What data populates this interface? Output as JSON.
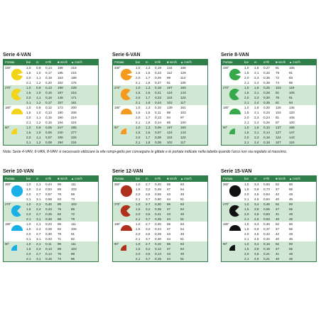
{
  "headers": {
    "portata": "Portata",
    "bar": "bar",
    "m": "m",
    "m3h": "m³/h",
    "sq": "■ mm/h",
    "tr": "▲ mm/h"
  },
  "note": "Nota: Serie 4-VAN, 6-VAN, 8-VAN: è necessario utilizzare la vite rompi-getto per conseguire le gittate e le portate indicate nella tabella quando l'arco non sia regolato al massimo.",
  "panels": [
    {
      "title": "Serie 4-VAN",
      "color": "#f2d41a",
      "groups": [
        {
          "deg": "330°",
          "arc": 330,
          "rows": [
            [
              "1,0",
              "0,9",
              "0,14",
              "189",
              "218"
            ],
            [
              "1,5",
              "1,0",
              "0,17",
              "185",
              "215"
            ],
            [
              "2,0",
              "1,1",
              "0,19",
              "163",
              "189"
            ],
            [
              "2,1",
              "1,2",
              "0,20",
              "152",
              "176"
            ]
          ]
        },
        {
          "deg": "270°",
          "arc": 270,
          "rows": [
            [
              "1,0",
              "0,9",
              "0,13",
              "198",
              "228"
            ],
            [
              "1,5",
              "1,0",
              "0,15",
              "187",
              "216"
            ],
            [
              "2,0",
              "1,1",
              "0,16",
              "148",
              "171"
            ],
            [
              "2,1",
              "1,2",
              "0,17",
              "157",
              "181"
            ]
          ]
        },
        {
          "deg": "180°",
          "arc": 180,
          "rows": [
            [
              "1,0",
              "0,9",
              "0,12",
              "173",
              "200"
            ],
            [
              "1,5",
              "1,0",
              "0,13",
              "180",
              "208"
            ],
            [
              "2,0",
              "1,1",
              "0,15",
              "190",
              "219"
            ],
            [
              "2,1",
              "1,2",
              "0,16",
              "194",
              "224"
            ]
          ]
        },
        {
          "deg": "90°",
          "arc": 90,
          "rows": [
            [
              "1,0",
              "0,9",
              "0,05",
              "247",
              "285"
            ],
            [
              "1,5",
              "1,0",
              "0,06",
              "240",
              "277"
            ],
            [
              "2,0",
              "1,1",
              "0,07",
              "196",
              "226"
            ],
            [
              "2,1",
              "1,2",
              "0,08",
              "194",
              "224"
            ]
          ]
        }
      ]
    },
    {
      "title": "Serie 6-VAN",
      "color": "#f39a1f",
      "groups": [
        {
          "deg": "330°",
          "arc": 330,
          "rows": [
            [
              "1,0",
              "1,3",
              "0,19",
              "144",
              "166"
            ],
            [
              "1,5",
              "1,5",
              "0,23",
              "112",
              "129"
            ],
            [
              "2,0",
              "1,7",
              "0,26",
              "99",
              "114"
            ],
            [
              "2,1",
              "1,8",
              "0,27",
              "91",
              "105"
            ]
          ]
        },
        {
          "deg": "270°",
          "arc": 270,
          "rows": [
            [
              "1,0",
              "1,3",
              "0,18",
              "167",
              "193"
            ],
            [
              "1,5",
              "1,5",
              "0,21",
              "124",
              "143"
            ],
            [
              "2,0",
              "1,7",
              "0,23",
              "104",
              "120"
            ],
            [
              "2,1",
              "1,8",
              "0,24",
              "102",
              "117"
            ]
          ]
        },
        {
          "deg": "180°",
          "arc": 180,
          "rows": [
            [
              "1,0",
              "1,3",
              "0,10",
              "139",
              "161"
            ],
            [
              "1,5",
              "1,5",
              "0,11",
              "88",
              "103"
            ],
            [
              "2,0",
              "1,7",
              "0,13",
              "84",
              "97"
            ],
            [
              "2,1",
              "1,8",
              "0,14",
              "86",
              "100"
            ]
          ]
        },
        {
          "deg": "90°",
          "arc": 90,
          "rows": [
            [
              "1,0",
              "1,3",
              "0,06",
              "167",
              "193"
            ],
            [
              "1,5",
              "1,5",
              "0,07",
              "124",
              "143"
            ],
            [
              "2,0",
              "1,7",
              "0,08",
              "104",
              "120"
            ],
            [
              "2,1",
              "1,8",
              "0,08",
              "102",
              "117"
            ]
          ]
        }
      ]
    },
    {
      "title": "Serie 8-VAN",
      "color": "#36a94a",
      "groups": [
        {
          "deg": "330°",
          "arc": 330,
          "rows": [
            [
              "1,0",
              "1,8",
              "0,27",
              "91",
              "105"
            ],
            [
              "1,5",
              "2,1",
              "0,32",
              "79",
              "91"
            ],
            [
              "2,0",
              "2,3",
              "0,36",
              "72",
              "83"
            ],
            [
              "2,1",
              "2,4",
              "0,39",
              "74",
              "86"
            ]
          ]
        },
        {
          "deg": "270°",
          "arc": 270,
          "rows": [
            [
              "1,0",
              "1,8",
              "0,25",
              "103",
              "119"
            ],
            [
              "1,5",
              "2,1",
              "0,28",
              "91",
              "105"
            ],
            [
              "2,0",
              "2,3",
              "0,30",
              "79",
              "91"
            ],
            [
              "2,1",
              "2,4",
              "0,35",
              "81",
              "94"
            ]
          ]
        },
        {
          "deg": "180°",
          "arc": 180,
          "rows": [
            [
              "1,0",
              "1,8",
              "0,20",
              "126",
              "145"
            ],
            [
              "1,5",
              "2,1",
              "0,23",
              "104",
              "120"
            ],
            [
              "2,0",
              "2,3",
              "0,24",
              "91",
              "105"
            ],
            [
              "2,1",
              "2,4",
              "0,26",
              "87",
              "100"
            ]
          ]
        },
        {
          "deg": "90°",
          "arc": 90,
          "rows": [
            [
              "1,0",
              "1,8",
              "0,10",
              "137",
              "158"
            ],
            [
              "1,5",
              "2,1",
              "0,14",
              "127",
              "147"
            ],
            [
              "2,0",
              "2,3",
              "0,16",
              "124",
              "143"
            ],
            [
              "2,1",
              "2,4",
              "0,18",
              "107",
              "124"
            ]
          ]
        }
      ]
    },
    {
      "title": "Serie 10-VAN",
      "color": "#1ab0e6",
      "groups": [
        {
          "deg": "360°",
          "arc": 360,
          "rows": [
            [
              "1,0",
              "2,1",
              "0,44",
              "96",
              "111"
            ],
            [
              "1,5",
              "2,4",
              "0,53",
              "89",
              "103"
            ],
            [
              "2,0",
              "2,7",
              "0,57",
              "76",
              "88"
            ],
            [
              "2,1",
              "3,1",
              "0,59",
              "63",
              "73"
            ]
          ]
        },
        {
          "deg": "270°",
          "arc": 270,
          "rows": [
            [
              "1,0",
              "2,1",
              "0,40",
              "89",
              "103"
            ],
            [
              "1,5",
              "2,4",
              "0,43",
              "76",
              "88"
            ],
            [
              "2,0",
              "2,7",
              "0,45",
              "62",
              "72"
            ],
            [
              "2,1",
              "3,1",
              "0,48",
              "68",
              "79"
            ]
          ]
        },
        {
          "deg": "180°",
          "arc": 180,
          "rows": [
            [
              "1,0",
              "2,1",
              "0,23",
              "96",
              "111"
            ],
            [
              "1,5",
              "2,4",
              "0,28",
              "92",
              "106"
            ],
            [
              "2,0",
              "2,7",
              "0,30",
              "79",
              "91"
            ],
            [
              "2,1",
              "3,1",
              "0,33",
              "71",
              "82"
            ]
          ]
        },
        {
          "deg": "90°",
          "arc": 90,
          "rows": [
            [
              "1,0",
              "2,1",
              "0,11",
              "96",
              "111"
            ],
            [
              "1,5",
              "2,4",
              "0,13",
              "89",
              "103"
            ],
            [
              "2,0",
              "2,7",
              "0,14",
              "76",
              "88"
            ],
            [
              "2,1",
              "3,1",
              "0,15",
              "73",
              "85"
            ]
          ]
        }
      ]
    },
    {
      "title": "Serie 12-VAN",
      "color": "#b0301e",
      "groups": [
        {
          "deg": "360°",
          "arc": 360,
          "rows": [
            [
              "1,0",
              "2,7",
              "0,40",
              "55",
              "63"
            ],
            [
              "1,5",
              "3,2",
              "0,48",
              "47",
              "54"
            ],
            [
              "2,0",
              "3,6",
              "0,55",
              "43",
              "49"
            ],
            [
              "2,1",
              "3,7",
              "0,60",
              "44",
              "51"
            ]
          ]
        },
        {
          "deg": "270°",
          "arc": 270,
          "rows": [
            [
              "1,0",
              "2,7",
              "0,30",
              "55",
              "63"
            ],
            [
              "1,5",
              "3,2",
              "0,36",
              "47",
              "54"
            ],
            [
              "2,0",
              "3,6",
              "0,41",
              "43",
              "49"
            ],
            [
              "2,1",
              "3,7",
              "0,45",
              "44",
              "51"
            ]
          ]
        },
        {
          "deg": "180°",
          "arc": 180,
          "rows": [
            [
              "1,0",
              "2,7",
              "0,20",
              "55",
              "63"
            ],
            [
              "1,5",
              "3,2",
              "0,24",
              "47",
              "54"
            ],
            [
              "2,0",
              "3,6",
              "0,28",
              "43",
              "49"
            ],
            [
              "2,1",
              "3,7",
              "0,30",
              "44",
              "51"
            ]
          ]
        },
        {
          "deg": "90°",
          "arc": 90,
          "rows": [
            [
              "1,0",
              "2,7",
              "0,10",
              "55",
              "63"
            ],
            [
              "1,5",
              "3,2",
              "0,12",
              "47",
              "54"
            ],
            [
              "2,0",
              "3,6",
              "0,14",
              "43",
              "49"
            ],
            [
              "2,1",
              "3,7",
              "0,15",
              "44",
              "51"
            ]
          ]
        }
      ]
    },
    {
      "title": "Serie 15-VAN",
      "color": "#111111",
      "groups": [
        {
          "deg": "360°",
          "arc": 360,
          "rows": [
            [
              "1,0",
              "3,4",
              "0,60",
              "52",
              "60"
            ],
            [
              "1,5",
              "3,9",
              "0,73",
              "47",
              "55"
            ],
            [
              "2,0",
              "4,5",
              "0,84",
              "42",
              "48"
            ],
            [
              "2,1",
              "4,6",
              "0,84",
              "40",
              "46"
            ]
          ]
        },
        {
          "deg": "270°",
          "arc": 270,
          "rows": [
            [
              "1,0",
              "3,4",
              "0,45",
              "52",
              "60"
            ],
            [
              "1,5",
              "3,9",
              "0,55",
              "47",
              "55"
            ],
            [
              "2,0",
              "4,5",
              "0,63",
              "41",
              "48"
            ],
            [
              "2,1",
              "4,6",
              "0,63",
              "40",
              "46"
            ]
          ]
        },
        {
          "deg": "180°",
          "arc": 180,
          "rows": [
            [
              "1,0",
              "3,4",
              "0,30",
              "52",
              "60"
            ],
            [
              "1,5",
              "3,9",
              "0,37",
              "47",
              "55"
            ],
            [
              "2,0",
              "4,5",
              "0,42",
              "42",
              "48"
            ],
            [
              "2,1",
              "4,6",
              "0,42",
              "40",
              "46"
            ]
          ]
        },
        {
          "deg": "90°",
          "arc": 90,
          "rows": [
            [
              "1,0",
              "3,4",
              "0,15",
              "52",
              "60"
            ],
            [
              "1,5",
              "3,9",
              "0,18",
              "47",
              "55"
            ],
            [
              "2,0",
              "4,5",
              "0,21",
              "41",
              "48"
            ],
            [
              "2,1",
              "4,6",
              "0,21",
              "40",
              "46"
            ]
          ]
        }
      ]
    }
  ]
}
